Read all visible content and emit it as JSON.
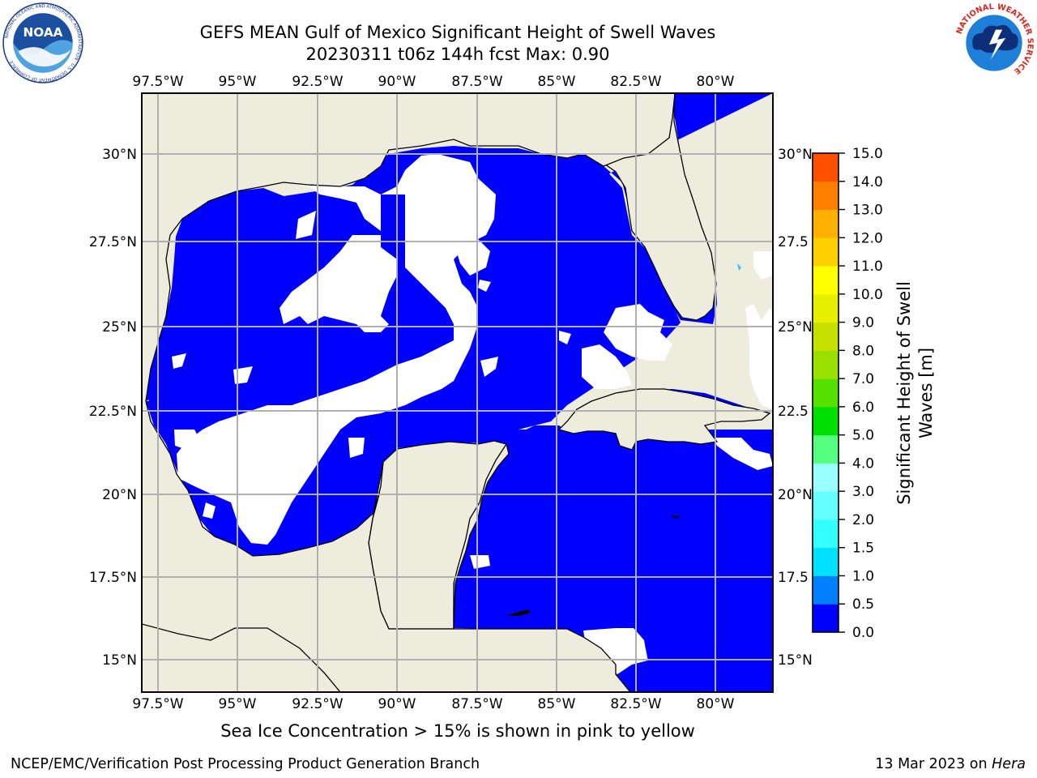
{
  "title": {
    "line1": "GEFS MEAN Gulf of Mexico Significant Height of Swell Waves",
    "line2": "20230311 t06z 144h fcst   Max: 0.90"
  },
  "logos": {
    "left": {
      "name": "NOAA",
      "ring_text": "NATIONAL OCEANIC AND ATMOSPHERIC ADMINISTRATION · U.S. DEPARTMENT OF COMMERCE"
    },
    "right": {
      "ring_text": "NATIONAL WEATHER SERVICE"
    }
  },
  "map": {
    "lon_labels": [
      "97.5°W",
      "95°W",
      "92.5°W",
      "90°W",
      "87.5°W",
      "85°W",
      "82.5°W",
      "80°W"
    ],
    "lat_labels": [
      "30°N",
      "27.5°N",
      "25°N",
      "22.5°N",
      "20°N",
      "17.5°N",
      "15°N"
    ],
    "right_lat_labels": [
      "30°N",
      "27.5",
      "25°N",
      "22.5",
      "20°N",
      "17.5",
      "15°N"
    ],
    "land_color": "#eeeddd",
    "ocean_zero_color": "#0000ff",
    "missing_color": "#ffffff",
    "gridline_color": "#b0b0b0"
  },
  "colorbar": {
    "label_line1": "Significant Height of Swell",
    "label_line2": "Waves [m]",
    "ticks": [
      "0.0",
      "0.5",
      "1.0",
      "1.5",
      "2.0",
      "3.0",
      "4.0",
      "5.0",
      "6.0",
      "7.0",
      "8.0",
      "9.0",
      "10.0",
      "11.0",
      "12.0",
      "13.0",
      "14.0",
      "15.0"
    ],
    "colors": [
      "#0000ff",
      "#0080ff",
      "#00e0ff",
      "#33ffff",
      "#66ffff",
      "#99ffff",
      "#55ff80",
      "#00e000",
      "#55e000",
      "#99e000",
      "#c8e000",
      "#e8f000",
      "#ffff00",
      "#ffd000",
      "#ffb000",
      "#ff8000",
      "#ff5000",
      "#ff2000",
      "#ff0000"
    ]
  },
  "subtitle": "Sea Ice Concentration > 15% is shown in pink to yellow",
  "footer": {
    "left": "NCEP/EMC/Verification Post Processing Product Generation Branch",
    "right_date": "13 Mar 2023 on",
    "right_host": "Hera"
  }
}
